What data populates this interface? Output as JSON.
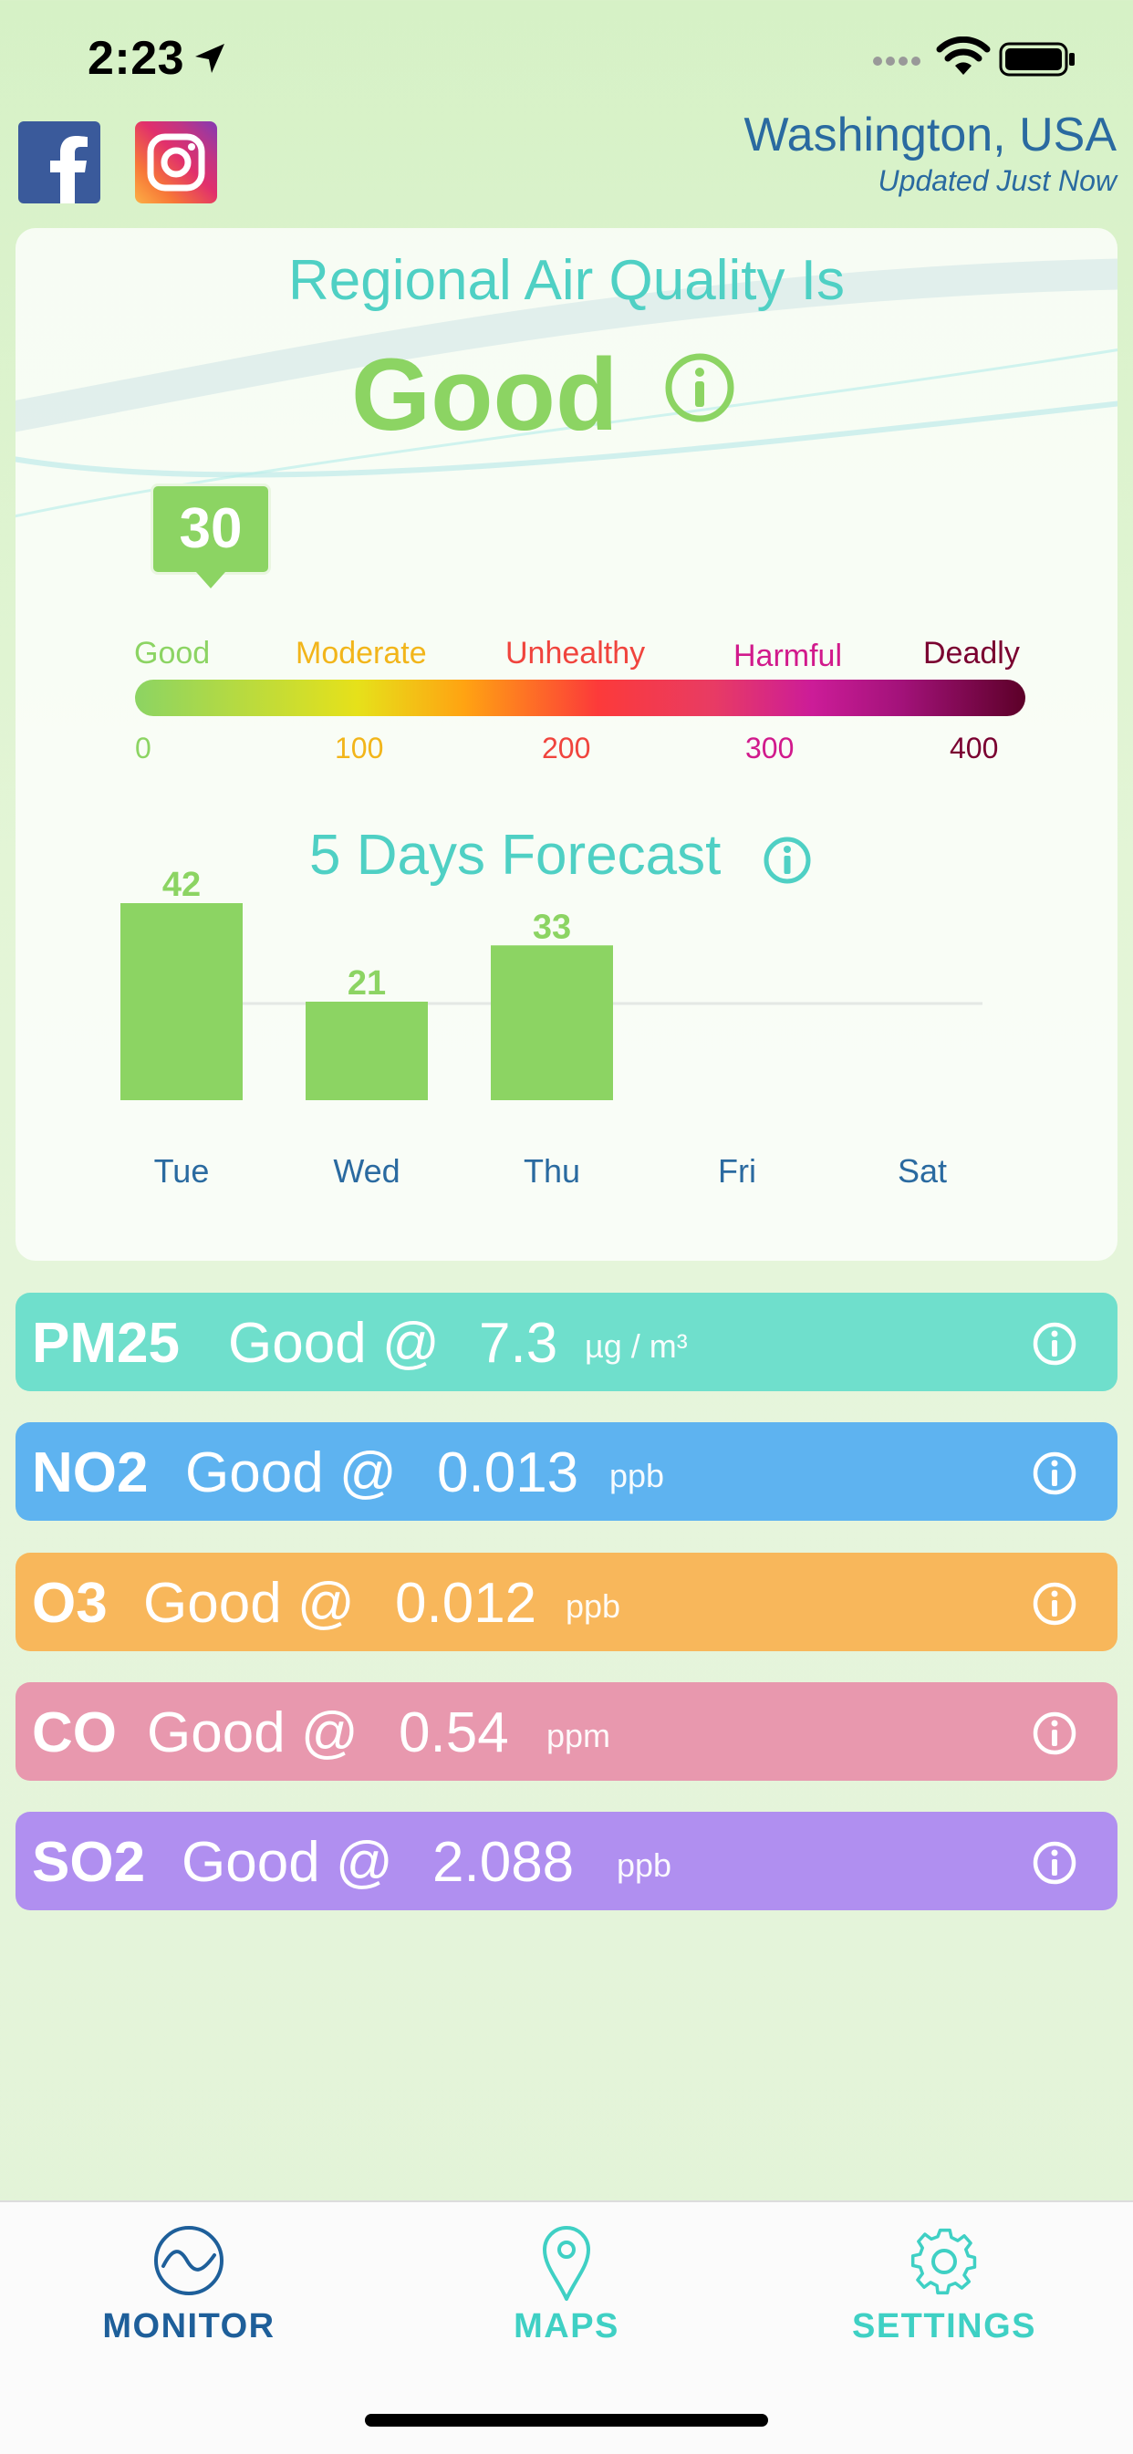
{
  "status_bar": {
    "time": "2:23"
  },
  "location": {
    "city": "Washington, USA",
    "updated": "Updated Just Now"
  },
  "air_quality": {
    "heading": "Regional Air Quality Is",
    "status": "Good",
    "aqi": "30",
    "scale_labels": [
      "Good",
      "Moderate",
      "Unhealthy",
      "Harmful",
      "Deadly"
    ],
    "scale_numbers": [
      "0",
      "100",
      "200",
      "300",
      "400"
    ],
    "colors": {
      "good": "#8cd463",
      "moderate": "#f2b51a",
      "unhealthy": "#f0443d",
      "harmful": "#d11a8c",
      "deadly": "#7a0030",
      "teal": "#4fd0c4"
    }
  },
  "forecast": {
    "heading": "5 Days Forecast"
  },
  "chart_data": {
    "type": "bar",
    "title": "5 Days Forecast",
    "categories": [
      "Tue",
      "Wed",
      "Thu",
      "Fri",
      "Sat"
    ],
    "values": [
      42,
      21,
      33,
      null,
      null
    ],
    "value_labels": [
      "42",
      "21",
      "33",
      "",
      ""
    ],
    "xlabel": "",
    "ylabel": "",
    "ylim": [
      0,
      42
    ],
    "grid": false,
    "bar_color": "#8cd463"
  },
  "pollutants": [
    {
      "name": "PM25",
      "status": "Good @",
      "value": "7.3",
      "unit": "µg / m³",
      "color": "#6fdfcc"
    },
    {
      "name": "NO2",
      "status": "Good @",
      "value": "0.013",
      "unit": "ppb",
      "color": "#5eb3f0"
    },
    {
      "name": "O3",
      "status": "Good @",
      "value": "0.012",
      "unit": "ppb",
      "color": "#f8b75b"
    },
    {
      "name": "CO",
      "status": "Good @",
      "value": "0.54",
      "unit": "ppm",
      "color": "#e898ae"
    },
    {
      "name": "SO2",
      "status": "Good @",
      "value": "2.088",
      "unit": "ppb",
      "color": "#b08ff0"
    }
  ],
  "tabs": [
    {
      "label": "MONITOR",
      "icon": "monitor-wave-icon",
      "active": true
    },
    {
      "label": "MAPS",
      "icon": "map-pin-icon",
      "active": false
    },
    {
      "label": "SETTINGS",
      "icon": "gear-icon",
      "active": false
    }
  ],
  "icons": {
    "social": [
      "facebook-icon",
      "instagram-icon"
    ],
    "info": "info-icon"
  }
}
